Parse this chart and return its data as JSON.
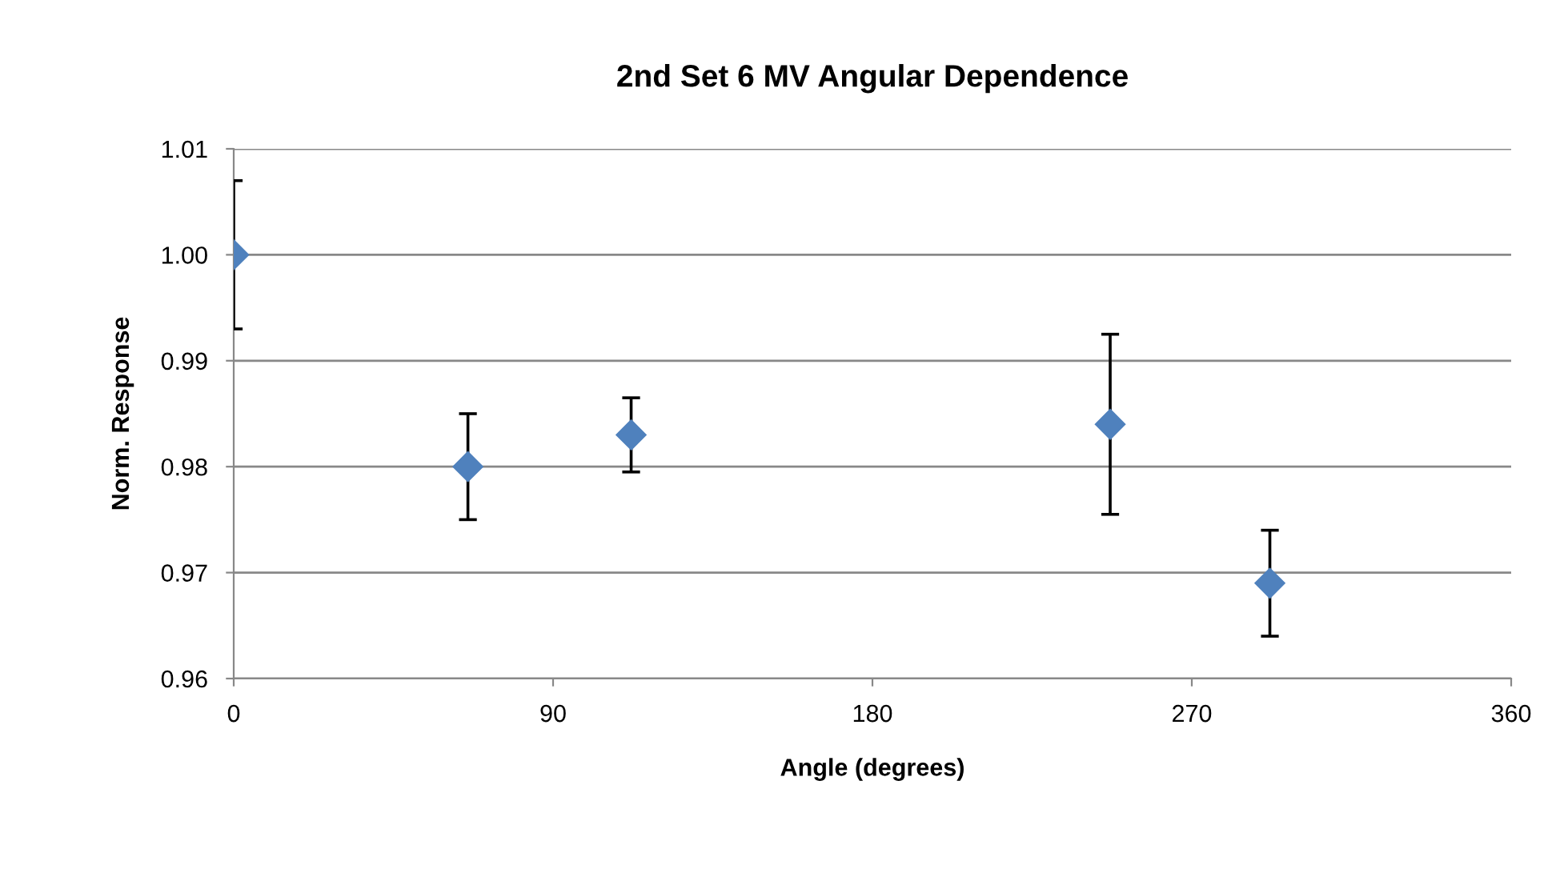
{
  "chart_data": {
    "type": "scatter",
    "title": "2nd Set 6 MV Angular Dependence",
    "xlabel": "Angle (degrees)",
    "ylabel": "Norm. Response",
    "x": [
      0,
      66,
      112,
      247,
      292
    ],
    "series": [
      {
        "color": "#4f81bd",
        "values": [
          1.0,
          0.98,
          0.983,
          0.984,
          0.969
        ],
        "errors": [
          0.007,
          0.005,
          0.0035,
          0.0085,
          0.005
        ]
      }
    ],
    "xlim": [
      0,
      360
    ],
    "xticks": [
      0,
      90,
      180,
      270,
      360
    ],
    "ylim": [
      0.96,
      1.01
    ],
    "yticks": [
      {
        "value": 0.96,
        "label": "0.96"
      },
      {
        "value": 0.97,
        "label": "0.97"
      },
      {
        "value": 0.98,
        "label": "0.98"
      },
      {
        "value": 0.99,
        "label": "0.99"
      },
      {
        "value": 1.0,
        "label": "1.00"
      },
      {
        "value": 1.01,
        "label": "1.01"
      }
    ],
    "grid": "y",
    "marker": "diamond",
    "legend": false
  }
}
